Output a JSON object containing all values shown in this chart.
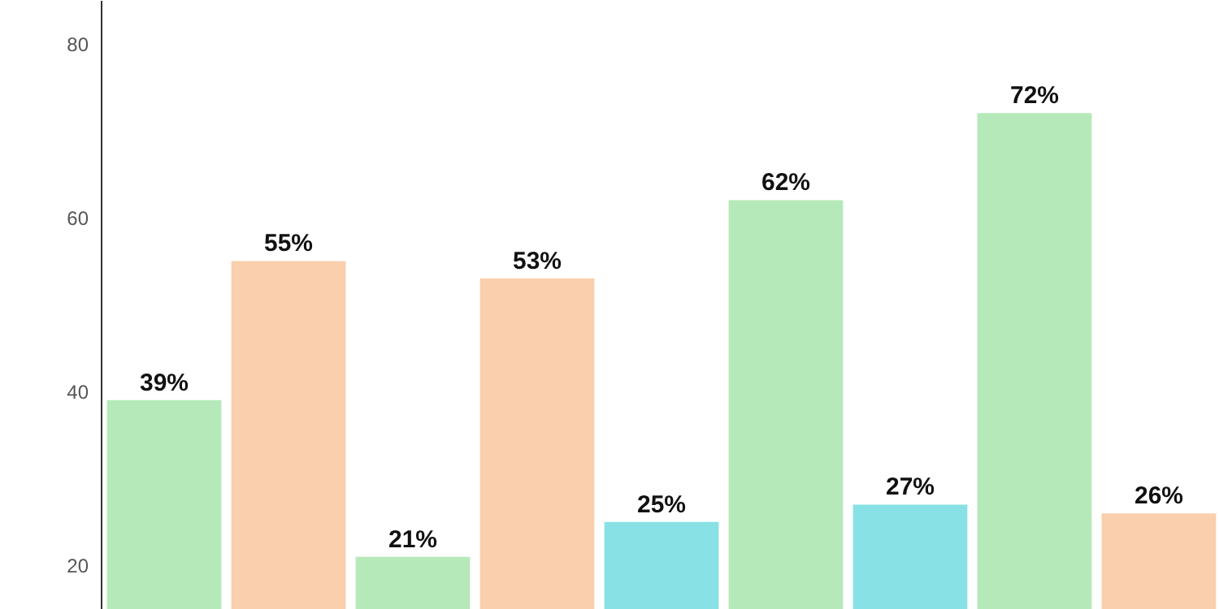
{
  "chart_data": {
    "type": "bar",
    "categories": [
      null,
      null,
      null,
      null,
      null,
      null,
      null,
      null,
      null
    ],
    "values": [
      39,
      55,
      21,
      53,
      25,
      62,
      27,
      72,
      26
    ],
    "colors": [
      "#b5e9b9",
      "#f9cfad",
      "#b5e9b9",
      "#f9cfad",
      "#88e1e5",
      "#b5e9b9",
      "#88e1e5",
      "#b5e9b9",
      "#f9cfad"
    ],
    "value_labels": [
      "39%",
      "55%",
      "21%",
      "53%",
      "25%",
      "62%",
      "27%",
      "72%",
      "26%"
    ],
    "ylim": [
      15,
      85
    ],
    "yticks": [
      20,
      40,
      60,
      80
    ],
    "grid": false,
    "tick_labels": "y"
  }
}
